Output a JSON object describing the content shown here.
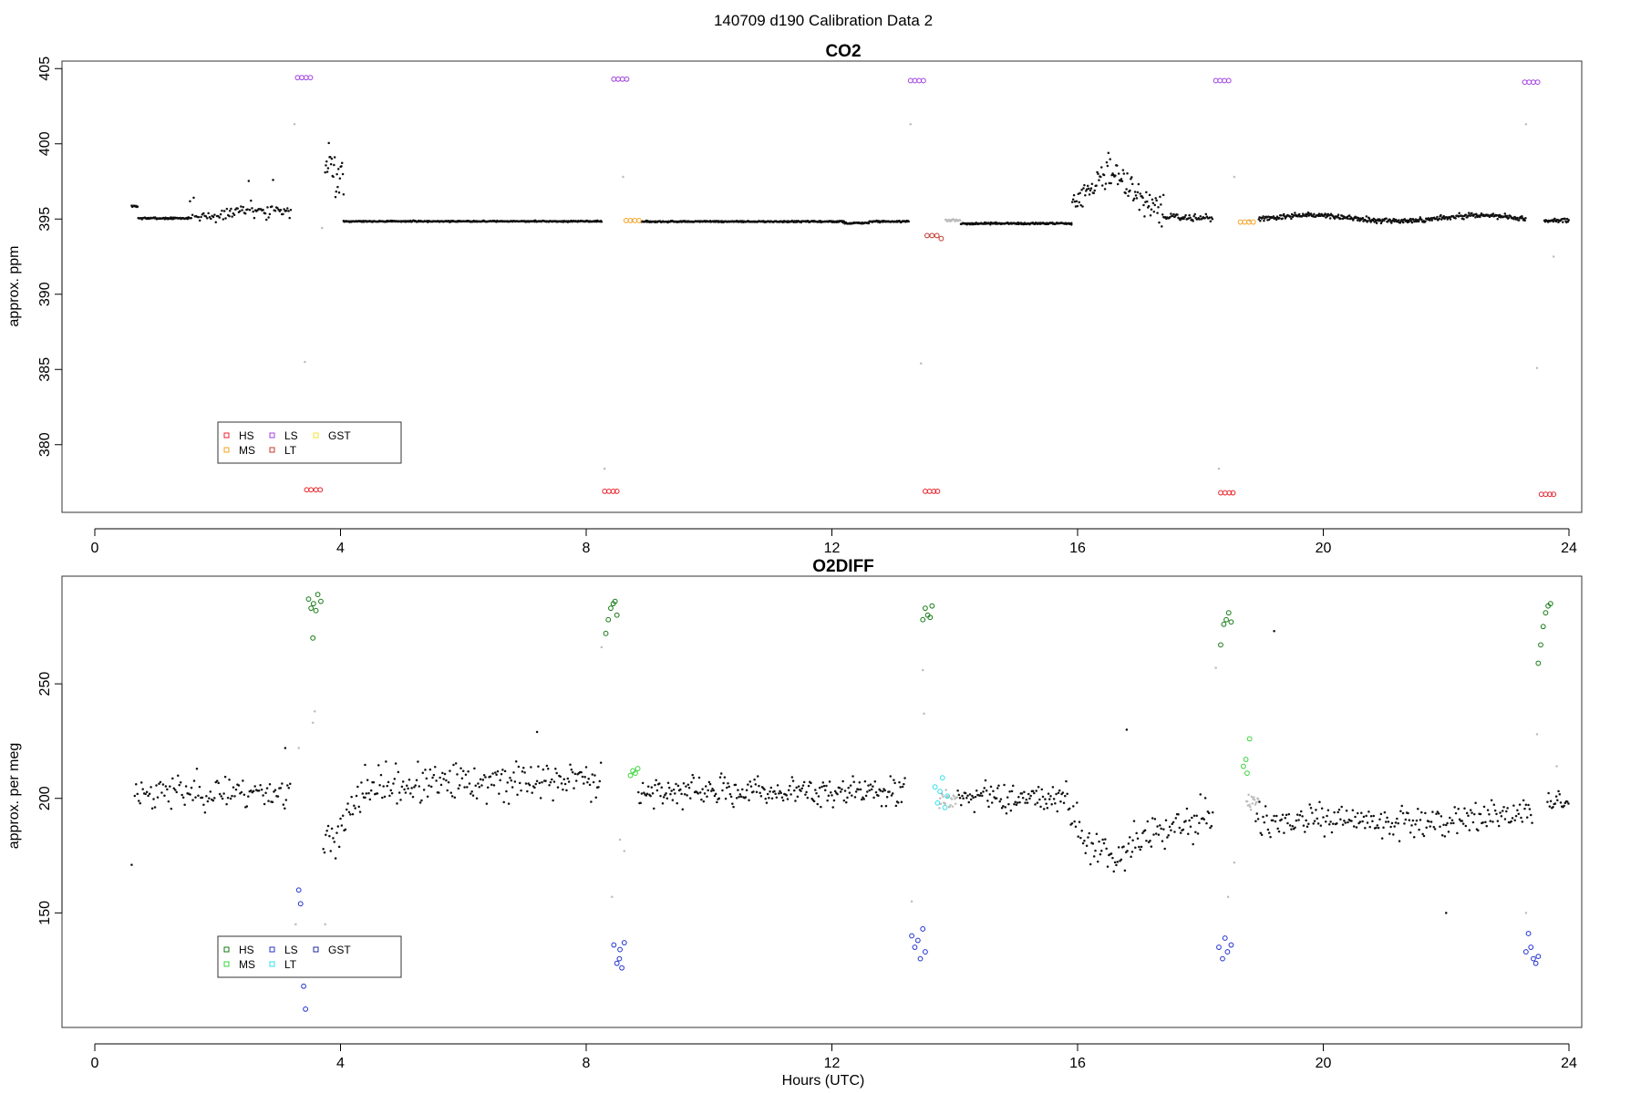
{
  "page": {
    "suptitle": "140709   d190   Calibration Data 2"
  },
  "legend_colors": {
    "co2": {
      "HS": "#e8232b",
      "MS": "#f6a21d",
      "LS": "#a040e0",
      "LT": "#c0392b",
      "GST": "#f2e43a"
    },
    "o2": {
      "HS": "#157a15",
      "MS": "#38d438",
      "LS": "#2030d0",
      "LT": "#30e0e8",
      "GST": "#1e2aa0"
    }
  },
  "chart_data": [
    {
      "id": "co2",
      "type": "scatter",
      "title": "CO2",
      "xlabel": "",
      "ylabel": "approx. ppm",
      "xlim": [
        -1.1,
        25.2
      ],
      "ylim": [
        375.5,
        405.5
      ],
      "xticks": [
        0,
        4,
        8,
        12,
        16,
        20,
        24
      ],
      "yticks": [
        380,
        385,
        390,
        395,
        400,
        405
      ],
      "grid": false,
      "legend_position": "bottom-left",
      "legend": [
        "HS",
        "MS",
        "LS",
        "LT",
        "GST"
      ],
      "series": [
        {
          "name": "HS",
          "color": "#e8232b",
          "points": [
            [
              3.45,
              377.0
            ],
            [
              3.52,
              377.0
            ],
            [
              3.6,
              377.0
            ],
            [
              3.67,
              377.0
            ],
            [
              8.3,
              376.9
            ],
            [
              8.37,
              376.9
            ],
            [
              8.44,
              376.9
            ],
            [
              8.5,
              376.9
            ],
            [
              13.52,
              376.9
            ],
            [
              13.59,
              376.9
            ],
            [
              13.66,
              376.9
            ],
            [
              13.72,
              376.9
            ],
            [
              18.33,
              376.8
            ],
            [
              18.4,
              376.8
            ],
            [
              18.47,
              376.8
            ],
            [
              18.53,
              376.8
            ],
            [
              23.55,
              376.7
            ],
            [
              23.62,
              376.7
            ],
            [
              23.69,
              376.7
            ],
            [
              23.75,
              376.7
            ]
          ]
        },
        {
          "name": "MS",
          "color": "#f6a21d",
          "points": [
            [
              8.65,
              394.9
            ],
            [
              8.72,
              394.9
            ],
            [
              8.79,
              394.9
            ],
            [
              8.86,
              394.9
            ],
            [
              18.65,
              394.8
            ],
            [
              18.72,
              394.8
            ],
            [
              18.79,
              394.8
            ],
            [
              18.86,
              394.8
            ]
          ]
        },
        {
          "name": "LS",
          "color": "#a040e0",
          "points": [
            [
              3.3,
              404.4
            ],
            [
              3.37,
              404.4
            ],
            [
              3.44,
              404.4
            ],
            [
              3.51,
              404.4
            ],
            [
              8.45,
              404.3
            ],
            [
              8.52,
              404.3
            ],
            [
              8.59,
              404.3
            ],
            [
              8.66,
              404.3
            ],
            [
              13.28,
              404.2
            ],
            [
              13.35,
              404.2
            ],
            [
              13.42,
              404.2
            ],
            [
              13.49,
              404.2
            ],
            [
              18.25,
              404.2
            ],
            [
              18.32,
              404.2
            ],
            [
              18.39,
              404.2
            ],
            [
              18.46,
              404.2
            ],
            [
              23.28,
              404.1
            ],
            [
              23.35,
              404.1
            ],
            [
              23.42,
              404.1
            ],
            [
              23.49,
              404.1
            ]
          ]
        },
        {
          "name": "LT",
          "color": "#c0392b",
          "points": [
            [
              13.55,
              393.9
            ],
            [
              13.63,
              393.9
            ],
            [
              13.71,
              393.9
            ],
            [
              13.78,
              393.7
            ]
          ]
        },
        {
          "name": "GST",
          "color": "#f2e43a",
          "points": []
        }
      ]
    },
    {
      "id": "o2",
      "type": "scatter",
      "title": "O2DIFF",
      "xlabel": "Hours (UTC)",
      "ylabel": "approx. per meg",
      "xlim": [
        -1.1,
        25.2
      ],
      "ylim": [
        100,
        297
      ],
      "xticks": [
        0,
        4,
        8,
        12,
        16,
        20,
        24
      ],
      "yticks": [
        150,
        200,
        250
      ],
      "grid": false,
      "legend_position": "bottom-left",
      "legend": [
        "HS",
        "MS",
        "LS",
        "LT",
        "GST"
      ],
      "series": [
        {
          "name": "HS",
          "color": "#157a15",
          "points": [
            [
              3.48,
              287
            ],
            [
              3.52,
              283
            ],
            [
              3.56,
              285
            ],
            [
              3.6,
              282
            ],
            [
              3.63,
              289
            ],
            [
              3.68,
              286
            ],
            [
              3.55,
              270
            ],
            [
              8.32,
              272
            ],
            [
              8.36,
              278
            ],
            [
              8.4,
              283
            ],
            [
              8.44,
              285
            ],
            [
              8.47,
              286
            ],
            [
              8.5,
              280
            ],
            [
              13.48,
              278
            ],
            [
              13.52,
              283
            ],
            [
              13.56,
              280
            ],
            [
              13.6,
              279
            ],
            [
              13.63,
              284
            ],
            [
              18.33,
              267
            ],
            [
              18.38,
              276
            ],
            [
              18.42,
              278
            ],
            [
              18.46,
              281
            ],
            [
              18.5,
              277
            ],
            [
              23.5,
              259
            ],
            [
              23.54,
              267
            ],
            [
              23.58,
              275
            ],
            [
              23.62,
              281
            ],
            [
              23.66,
              284
            ],
            [
              23.7,
              285
            ]
          ]
        },
        {
          "name": "MS",
          "color": "#38d438",
          "points": [
            [
              8.72,
              210
            ],
            [
              8.76,
              212
            ],
            [
              8.8,
              211
            ],
            [
              8.84,
              213
            ],
            [
              18.7,
              214
            ],
            [
              18.74,
              217
            ],
            [
              18.8,
              226
            ],
            [
              18.76,
              211
            ]
          ]
        },
        {
          "name": "LS",
          "color": "#2030d0",
          "points": [
            [
              3.32,
              160
            ],
            [
              3.35,
              154
            ],
            [
              3.4,
              118
            ],
            [
              3.43,
              108
            ],
            [
              8.45,
              136
            ],
            [
              8.5,
              128
            ],
            [
              8.55,
              134
            ],
            [
              8.58,
              126
            ],
            [
              8.62,
              137
            ],
            [
              8.54,
              130
            ],
            [
              13.3,
              140
            ],
            [
              13.35,
              135
            ],
            [
              13.4,
              138
            ],
            [
              13.44,
              130
            ],
            [
              13.48,
              143
            ],
            [
              13.52,
              133
            ],
            [
              18.3,
              135
            ],
            [
              18.36,
              130
            ],
            [
              18.4,
              139
            ],
            [
              18.44,
              133
            ],
            [
              18.5,
              136
            ],
            [
              23.3,
              133
            ],
            [
              23.34,
              141
            ],
            [
              23.38,
              135
            ],
            [
              23.42,
              130
            ],
            [
              23.46,
              128
            ],
            [
              23.5,
              131
            ]
          ]
        },
        {
          "name": "LT",
          "color": "#30e0e8",
          "points": [
            [
              13.68,
              205
            ],
            [
              13.72,
              198
            ],
            [
              13.76,
              203
            ],
            [
              13.8,
              209
            ],
            [
              13.84,
              196
            ],
            [
              13.88,
              201
            ]
          ]
        },
        {
          "name": "GST",
          "color": "#1e2aa0",
          "points": []
        }
      ]
    }
  ]
}
